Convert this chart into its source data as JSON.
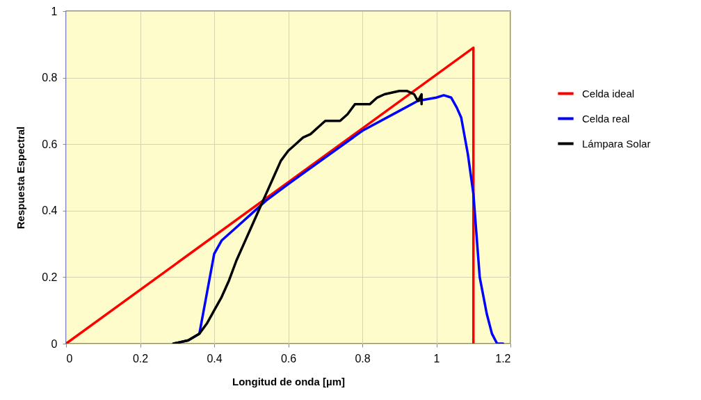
{
  "chart_data": {
    "type": "line",
    "xlabel": "Longitud de onda [µm]",
    "ylabel": "Respuesta Espectral",
    "xlim": [
      0,
      1.2
    ],
    "xticks": [
      0,
      0.2,
      0.4,
      0.6,
      0.8,
      1,
      1.2
    ],
    "ylim": [
      0,
      1
    ],
    "yticks": [
      0,
      0.2,
      0.4,
      0.6,
      0.8,
      1
    ],
    "grid": true,
    "legend": "right",
    "series": [
      {
        "name": "Celda ideal",
        "color": "#ff0000",
        "x": [
          0,
          1.1,
          1.1
        ],
        "values": [
          0,
          0.89,
          0
        ]
      },
      {
        "name": "Celda real",
        "color": "#0000ff",
        "x": [
          0.29,
          0.33,
          0.36,
          0.38,
          0.4,
          0.42,
          0.46,
          0.5,
          0.54,
          0.6,
          0.7,
          0.8,
          0.9,
          0.95,
          1.0,
          1.02,
          1.04,
          1.055,
          1.067,
          1.085,
          1.1,
          1.117,
          1.136,
          1.15,
          1.164,
          1.18
        ],
        "values": [
          0,
          0.01,
          0.03,
          0.15,
          0.27,
          0.31,
          0.35,
          0.39,
          0.43,
          0.48,
          0.56,
          0.64,
          0.7,
          0.73,
          0.74,
          0.747,
          0.74,
          0.71,
          0.68,
          0.57,
          0.45,
          0.2,
          0.09,
          0.03,
          0,
          0
        ]
      },
      {
        "name": "Lámpara Solar",
        "color": "#000000",
        "x": [
          0.29,
          0.33,
          0.36,
          0.38,
          0.4,
          0.42,
          0.44,
          0.46,
          0.48,
          0.5,
          0.52,
          0.54,
          0.56,
          0.58,
          0.6,
          0.62,
          0.64,
          0.66,
          0.68,
          0.7,
          0.74,
          0.76,
          0.78,
          0.82,
          0.84,
          0.86,
          0.9,
          0.92,
          0.94,
          0.95,
          0.96,
          0.96
        ],
        "values": [
          0,
          0.01,
          0.03,
          0.06,
          0.1,
          0.14,
          0.19,
          0.25,
          0.3,
          0.35,
          0.4,
          0.45,
          0.5,
          0.55,
          0.58,
          0.6,
          0.62,
          0.63,
          0.65,
          0.67,
          0.67,
          0.69,
          0.72,
          0.72,
          0.74,
          0.75,
          0.76,
          0.76,
          0.75,
          0.73,
          0.75,
          0.72
        ]
      }
    ]
  }
}
